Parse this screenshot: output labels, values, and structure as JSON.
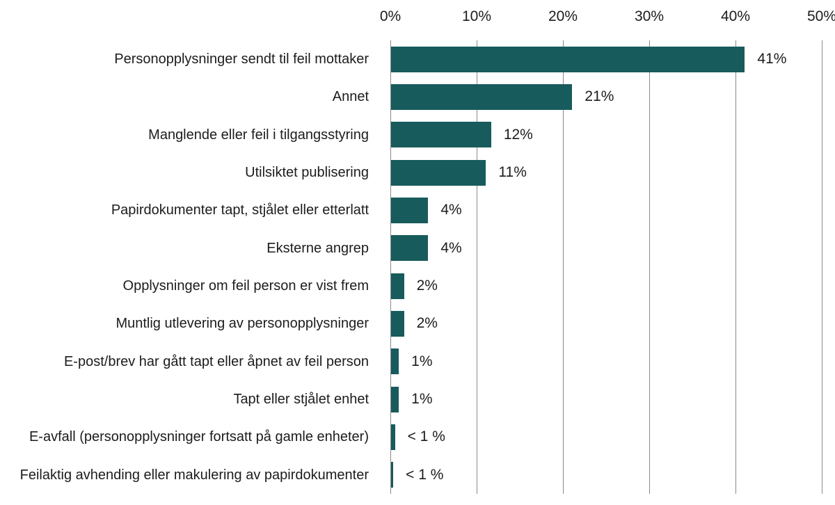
{
  "chart_data": {
    "type": "bar",
    "orientation": "horizontal",
    "title": "",
    "legend": "none",
    "grid": true,
    "bar_color": "#185b5c",
    "gridline_color": "#8a8a8a",
    "text_color": "#1c1c1c",
    "x_axis": {
      "position": "top",
      "xlim": [
        0,
        50
      ],
      "ticks": [
        0,
        10,
        20,
        30,
        40,
        50
      ],
      "tick_labels": [
        "0%",
        "10%",
        "20%",
        "30%",
        "40%",
        "50%"
      ]
    },
    "items": [
      {
        "label": "Personopplysninger sendt til feil mottaker",
        "value": 41,
        "value_label": "41%"
      },
      {
        "label": "Annet",
        "value": 21,
        "value_label": "21%"
      },
      {
        "label": "Manglende eller feil i tilgangsstyring",
        "value": 11.6,
        "value_label": "12%"
      },
      {
        "label": "Utilsiktet publisering",
        "value": 11,
        "value_label": "11%"
      },
      {
        "label": "Papirdokumenter tapt, stjålet eller etterlatt",
        "value": 4.3,
        "value_label": "4%"
      },
      {
        "label": "Eksterne angrep",
        "value": 4.3,
        "value_label": "4%"
      },
      {
        "label": "Opplysninger om feil person er vist frem",
        "value": 1.5,
        "value_label": "2%"
      },
      {
        "label": "Muntlig utlevering av personopplysninger",
        "value": 1.5,
        "value_label": "2%"
      },
      {
        "label": "E-post/brev har gått tapt eller åpnet av feil person",
        "value": 0.9,
        "value_label": "1%"
      },
      {
        "label": "Tapt eller stjålet enhet",
        "value": 0.9,
        "value_label": "1%"
      },
      {
        "label": "E-avfall (personopplysninger fortsatt på gamle enheter)",
        "value": 0.45,
        "value_label": "< 1 %"
      },
      {
        "label": "Feilaktig avhending eller makulering av papirdokumenter",
        "value": 0.25,
        "value_label": "< 1 %"
      }
    ]
  }
}
